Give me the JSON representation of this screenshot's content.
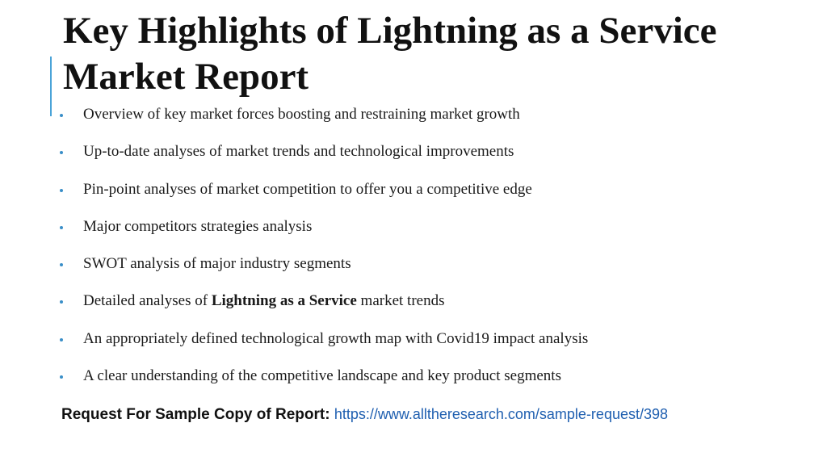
{
  "title": "Key Highlights of Lightning as a Service Market Report",
  "bullets": [
    {
      "text": "Overview of key market forces boosting and restraining market growth"
    },
    {
      "text": "Up-to-date analyses of market trends and technological improvements"
    },
    {
      "text": "Pin-point analyses of market competition to offer you a competitive edge"
    },
    {
      "text": "Major competitors strategies analysis"
    },
    {
      "text": "SWOT analysis of major industry segments"
    },
    {
      "prefix": "Detailed analyses of ",
      "bold": "Lightning as a Service",
      "suffix": " market trends"
    },
    {
      "text": "An appropriately defined technological growth map with Covid19 impact analysis"
    },
    {
      "text": "A clear understanding of the competitive landscape and key product segments"
    }
  ],
  "cta": {
    "label": "Request For Sample Copy of Report:",
    "link": "https://www.alltheresearch.com/sample-request/398"
  },
  "colors": {
    "accent": "#4aa3d8",
    "link": "#1f5fb0",
    "bullet": "#3a8fc8"
  }
}
